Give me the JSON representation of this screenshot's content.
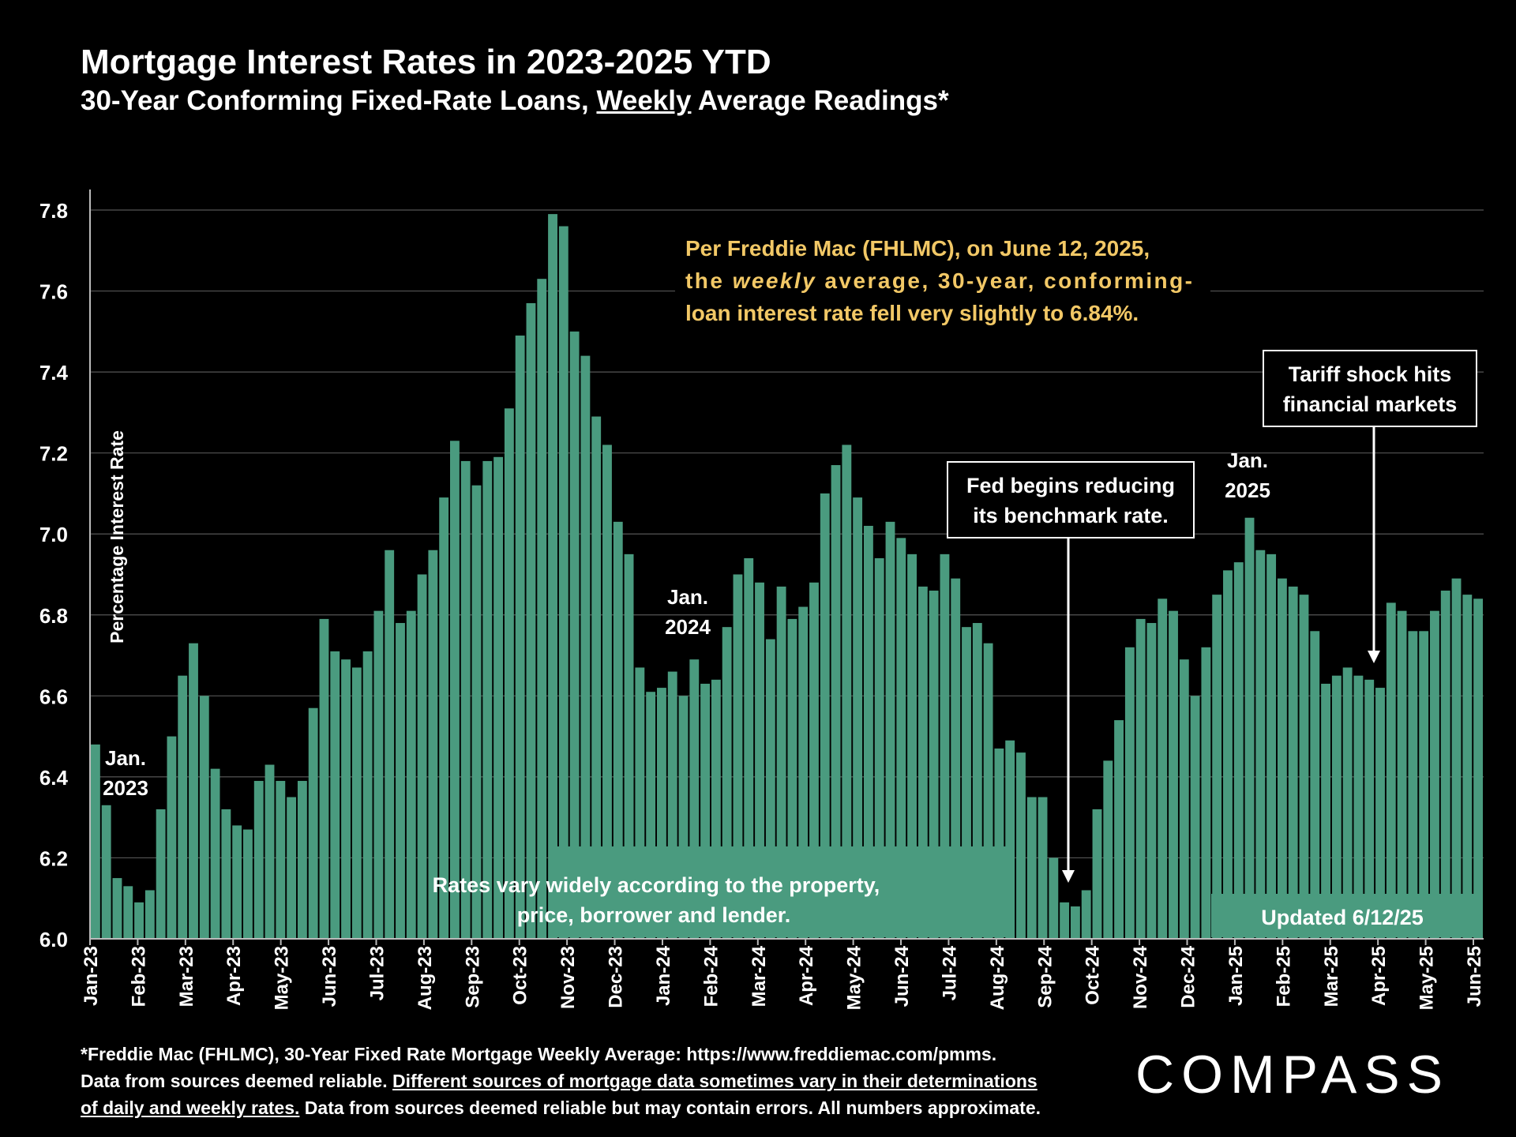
{
  "header": {
    "title": "Mortgage Interest Rates in 2023-2025 YTD",
    "subtitle_pre": "30-Year Conforming Fixed-Rate Loans, ",
    "subtitle_u": "Weekly",
    "subtitle_post": " Average Readings*"
  },
  "footnote": {
    "line1": "*Freddie Mac (FHLMC), 30-Year Fixed Rate Mortgage Weekly Average:  https://www.freddiemac.com/pmms.",
    "line2a": "Data from sources deemed reliable. ",
    "line2b": "Different sources of mortgage data sometimes vary in their determinations",
    "line3a": "of daily and weekly rates.",
    "line3b": " Data from sources deemed reliable but may contain errors. All numbers approximate."
  },
  "logo": "COMPASS",
  "colors": {
    "bar": "#4a9b7f",
    "background": "#000000",
    "callout": "#f2c866",
    "grid": "#555555"
  },
  "chart_data": {
    "type": "bar",
    "ylabel": "Percentage Interest  Rate",
    "ylim": [
      6.0,
      7.8
    ],
    "yticks": [
      "6.0",
      "6.2",
      "6.4",
      "6.6",
      "6.8",
      "7.0",
      "7.2",
      "7.4",
      "7.6",
      "7.8"
    ],
    "grid": true,
    "xtick_labels": [
      "Jan-23",
      "Feb-23",
      "Mar-23",
      "Apr-23",
      "May-23",
      "Jun-23",
      "Jul-23",
      "Aug-23",
      "Sep-23",
      "Oct-23",
      "Nov-23",
      "Dec-23",
      "Jan-24",
      "Feb-24",
      "Mar-24",
      "Apr-24",
      "May-24",
      "Jun-24",
      "Jul-24",
      "Aug-24",
      "Sep-24",
      "Oct-24",
      "Nov-24",
      "Dec-24",
      "Jan-25",
      "Feb-25",
      "Mar-25",
      "Apr-25",
      "May-25",
      "Jun-25"
    ],
    "values": [
      6.48,
      6.33,
      6.15,
      6.13,
      6.09,
      6.12,
      6.32,
      6.5,
      6.65,
      6.73,
      6.6,
      6.42,
      6.32,
      6.28,
      6.27,
      6.39,
      6.43,
      6.39,
      6.35,
      6.39,
      6.57,
      6.79,
      6.71,
      6.69,
      6.67,
      6.71,
      6.81,
      6.96,
      6.78,
      6.81,
      6.9,
      6.96,
      7.09,
      7.23,
      7.18,
      7.12,
      7.18,
      7.19,
      7.31,
      7.49,
      7.57,
      7.63,
      7.79,
      7.76,
      7.5,
      7.44,
      7.29,
      7.22,
      7.03,
      6.95,
      6.67,
      6.61,
      6.62,
      6.66,
      6.6,
      6.69,
      6.63,
      6.64,
      6.77,
      6.9,
      6.94,
      6.88,
      6.74,
      6.87,
      6.79,
      6.82,
      6.88,
      7.1,
      7.17,
      7.22,
      7.09,
      7.02,
      6.94,
      7.03,
      6.99,
      6.95,
      6.87,
      6.86,
      6.95,
      6.89,
      6.77,
      6.78,
      6.73,
      6.47,
      6.49,
      6.46,
      6.35,
      6.35,
      6.2,
      6.09,
      6.08,
      6.12,
      6.32,
      6.44,
      6.54,
      6.72,
      6.79,
      6.78,
      6.84,
      6.81,
      6.69,
      6.6,
      6.72,
      6.85,
      6.91,
      6.93,
      7.04,
      6.96,
      6.95,
      6.89,
      6.87,
      6.85,
      6.76,
      6.63,
      6.65,
      6.67,
      6.65,
      6.64,
      6.62,
      6.83,
      6.81,
      6.76,
      6.76,
      6.81,
      6.86,
      6.89,
      6.85,
      6.84
    ],
    "annotations": {
      "jan2023": [
        "Jan.",
        "2023"
      ],
      "jan2024": [
        "Jan.",
        "2024"
      ],
      "jan2025": [
        "Jan.",
        "2025"
      ],
      "fed_box": [
        "Fed begins reducing",
        "its benchmark rate."
      ],
      "tariff_box": [
        "Tariff shock hits",
        "financial markets"
      ],
      "freddie_note": {
        "l1": "Per Freddie Mac (FHLMC), on June 12, 2025,",
        "l2a": "the ",
        "l2b": "weekly",
        "l2c": " average, 30-year, conforming-",
        "l3": "loan interest rate fell very slightly to 6.84%."
      },
      "vary_note": [
        "Rates vary widely according to the property,",
        "price, borrower and lender."
      ],
      "updated": "Updated 6/12/25"
    }
  }
}
